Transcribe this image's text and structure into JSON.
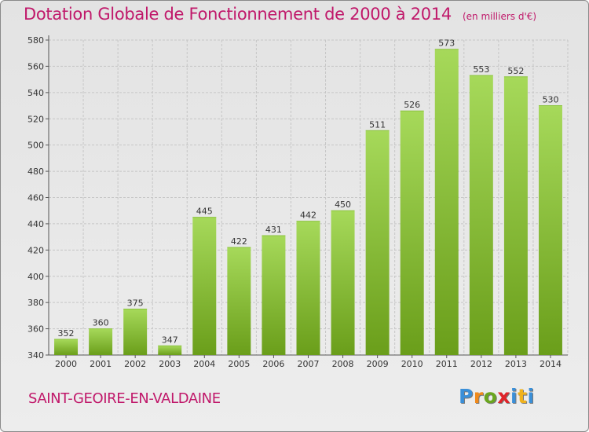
{
  "header": {
    "title": "Dotation Globale de Fonctionnement de 2000 à 2014",
    "unit": "(en milliers d'€)"
  },
  "footer": {
    "commune": "SAINT-GEOIRE-EN-VALDAINE",
    "logo": {
      "letters": [
        "P",
        "r",
        "o",
        "x",
        "i",
        "t",
        "i"
      ],
      "colors": [
        "#3a8fd8",
        "#f08a1c",
        "#6aa61e",
        "#e0242a",
        "#3a8fd8",
        "#f0b21c",
        "#3a8fd8"
      ]
    }
  },
  "colors": {
    "title": "#c0186a",
    "bar_light": "#a6d95a",
    "bar_dark": "#6a9e1a",
    "grid": "#c6c6c6"
  },
  "chart_data": {
    "type": "bar",
    "title": "Dotation Globale de Fonctionnement de 2000 à 2014",
    "xlabel": "",
    "ylabel": "",
    "categories": [
      "2000",
      "2001",
      "2002",
      "2003",
      "2004",
      "2005",
      "2006",
      "2007",
      "2008",
      "2009",
      "2010",
      "2011",
      "2012",
      "2013",
      "2014"
    ],
    "values": [
      352,
      360,
      375,
      347,
      445,
      422,
      431,
      442,
      450,
      511,
      526,
      573,
      553,
      552,
      530
    ],
    "ylim": [
      340,
      580
    ],
    "yticks": [
      340,
      360,
      380,
      400,
      420,
      440,
      460,
      480,
      500,
      520,
      540,
      560,
      580
    ],
    "grid": true
  }
}
